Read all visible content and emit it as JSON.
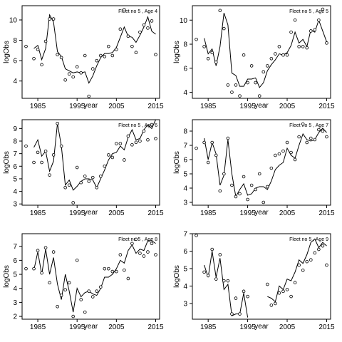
{
  "chart_data": [
    {
      "type": "scatter",
      "title": "Fleet no 5 , Age 4",
      "xlabel": "year",
      "ylabel": "logObs",
      "xlim": [
        1981,
        2016
      ],
      "ylim": [
        2.3,
        11.4
      ],
      "xticks": [
        1985,
        1995,
        2005,
        2015
      ],
      "yticks": [
        4,
        6,
        8,
        10
      ],
      "observed": {
        "x": [
          1982,
          1984,
          1985,
          1986,
          1987,
          1988,
          1989,
          1990,
          1991,
          1992,
          1993,
          1994,
          1995,
          1996,
          1997,
          1998,
          1999,
          2000,
          2001,
          2002,
          2003,
          2004,
          2005,
          2006,
          2007,
          2008,
          2009,
          2010,
          2011,
          2012,
          2013,
          2014,
          2015
        ],
        "y": [
          7.4,
          6.2,
          7.1,
          5.6,
          7.9,
          10.1,
          10.1,
          6.6,
          6.3,
          4.1,
          4.7,
          4.4,
          5.4,
          4.8,
          6.5,
          2.5,
          5.2,
          6.0,
          6.5,
          6.4,
          7.4,
          6.5,
          7.1,
          9.1,
          11.0,
          8.4,
          7.4,
          6.8,
          8.8,
          9.5,
          9.2,
          9.9,
          6.6
        ]
      },
      "fitted": {
        "x": [
          1982,
          1984,
          1985,
          1986,
          1987,
          1988,
          1989,
          1990,
          1991,
          1992,
          1993,
          1994,
          1995,
          1996,
          1997,
          1998,
          1999,
          2000,
          2001,
          2002,
          2003,
          2004,
          2005,
          2006,
          2007,
          2008,
          2009,
          2010,
          2011,
          2012,
          2013,
          2014,
          2015
        ],
        "y": [
          7.4,
          7.2,
          7.5,
          6.1,
          7.2,
          10.5,
          9.8,
          6.9,
          6.4,
          5.2,
          5.0,
          4.8,
          4.9,
          4.8,
          4.9,
          3.8,
          4.5,
          5.5,
          6.3,
          6.7,
          6.7,
          6.8,
          7.3,
          8.3,
          9.3,
          8.4,
          8.3,
          7.8,
          8.5,
          9.3,
          10.3,
          8.9,
          8.6
        ]
      }
    },
    {
      "type": "scatter",
      "title": "Fleet no 5 , Age 5",
      "xlabel": "year",
      "ylabel": "logObs",
      "xlim": [
        1981,
        2016
      ],
      "ylim": [
        3.5,
        11.2
      ],
      "xticks": [
        1985,
        1995,
        2005,
        2015
      ],
      "yticks": [
        4,
        6,
        8,
        10
      ],
      "observed": {
        "x": [
          1982,
          1984,
          1985,
          1986,
          1987,
          1988,
          1989,
          1990,
          1991,
          1992,
          1993,
          1994,
          1995,
          1996,
          1997,
          1998,
          1999,
          2000,
          2001,
          2002,
          2003,
          2004,
          2005,
          2006,
          2007,
          2008,
          2009,
          2010,
          2011,
          2012,
          2013,
          2014,
          2015
        ],
        "y": [
          8.4,
          7.8,
          6.8,
          7.3,
          6.5,
          10.8,
          9.3,
          4.6,
          4.0,
          4.6,
          3.7,
          7.1,
          4.8,
          6.2,
          4.8,
          3.7,
          5.7,
          6.2,
          6.8,
          7.2,
          7.8,
          7.1,
          7.1,
          9.0,
          10.0,
          7.8,
          7.8,
          7.7,
          9.1,
          9.2,
          10.0,
          10.9,
          8.1
        ]
      },
      "fitted": {
        "x": [
          1982,
          1984,
          1985,
          1986,
          1987,
          1988,
          1989,
          1990,
          1991,
          1992,
          1993,
          1994,
          1995,
          1996,
          1997,
          1998,
          1999,
          2000,
          2001,
          2002,
          2003,
          2004,
          2005,
          2006,
          2007,
          2008,
          2009,
          2010,
          2011,
          2012,
          2013,
          2014,
          2015
        ],
        "y": [
          8.9,
          8.5,
          7.2,
          7.6,
          6.2,
          7.8,
          10.6,
          9.6,
          5.6,
          5.4,
          4.5,
          4.5,
          5.1,
          5.1,
          5.2,
          4.4,
          4.8,
          5.8,
          6.3,
          6.7,
          7.2,
          7.1,
          7.3,
          7.9,
          9.0,
          8.1,
          8.4,
          7.8,
          9.2,
          9.0,
          10.0,
          9.1,
          8.2
        ]
      }
    },
    {
      "type": "scatter",
      "title": "Fleet no 5 , Age 6",
      "xlabel": "year",
      "ylabel": "logObs",
      "xlim": [
        1981,
        2016
      ],
      "ylim": [
        2.9,
        9.7
      ],
      "xticks": [
        1985,
        1995,
        2005,
        2015
      ],
      "yticks": [
        3,
        4,
        5,
        6,
        7,
        8,
        9
      ],
      "observed": {
        "x": [
          1982,
          1984,
          1985,
          1986,
          1987,
          1988,
          1989,
          1990,
          1991,
          1992,
          1993,
          1994,
          1995,
          1996,
          1997,
          1998,
          1999,
          2000,
          2001,
          2002,
          2003,
          2004,
          2005,
          2006,
          2007,
          2008,
          2009,
          2010,
          2011,
          2012,
          2013,
          2014,
          2015
        ],
        "y": [
          7.6,
          6.3,
          7.1,
          6.3,
          7.2,
          5.3,
          6.9,
          9.4,
          7.6,
          4.3,
          4.5,
          3.1,
          5.9,
          4.7,
          5.2,
          4.8,
          5.1,
          4.3,
          5.2,
          6.0,
          6.9,
          6.7,
          7.8,
          7.8,
          6.5,
          8.4,
          7.7,
          7.9,
          8.0,
          8.8,
          8.1,
          9.3,
          8.2
        ]
      },
      "fitted": {
        "x": [
          1982,
          1984,
          1985,
          1986,
          1987,
          1988,
          1989,
          1990,
          1991,
          1992,
          1993,
          1994,
          1995,
          1996,
          1997,
          1998,
          1999,
          2000,
          2001,
          2002,
          2003,
          2004,
          2005,
          2006,
          2007,
          2008,
          2009,
          2010,
          2011,
          2012,
          2013,
          2014,
          2015
        ],
        "y": [
          7.1,
          7.5,
          8.1,
          6.8,
          7.2,
          5.6,
          6.4,
          9.4,
          7.6,
          4.5,
          4.9,
          4.1,
          4.4,
          4.8,
          5.0,
          5.0,
          4.9,
          4.3,
          5.0,
          5.7,
          6.5,
          7.0,
          7.1,
          7.6,
          7.3,
          8.3,
          8.9,
          8.1,
          8.2,
          8.9,
          9.3,
          9.0,
          9.7
        ]
      }
    },
    {
      "type": "scatter",
      "title": "Fleet no 5 , Age 7",
      "xlabel": "year",
      "ylabel": "logObs",
      "xlim": [
        1981,
        2016
      ],
      "ylim": [
        2.8,
        8.8
      ],
      "xticks": [
        1985,
        1995,
        2005,
        2015
      ],
      "yticks": [
        3,
        4,
        5,
        6,
        7,
        8
      ],
      "observed": {
        "x": [
          1982,
          1984,
          1985,
          1986,
          1987,
          1988,
          1989,
          1990,
          1991,
          1992,
          1993,
          1994,
          1995,
          1996,
          1997,
          1998,
          1999,
          2000,
          2001,
          2002,
          2003,
          2004,
          2005,
          2006,
          2007,
          2008,
          2009,
          2010,
          2011,
          2012,
          2013,
          2014,
          2015
        ],
        "y": [
          6.8,
          7.2,
          5.8,
          7.2,
          6.3,
          3.8,
          5.0,
          7.5,
          4.2,
          3.4,
          3.6,
          4.8,
          3.2,
          4.2,
          3.9,
          5.0,
          3.0,
          4.1,
          5.4,
          6.3,
          6.4,
          6.6,
          7.2,
          6.5,
          6.0,
          7.6,
          8.5,
          7.2,
          7.5,
          7.4,
          8.1,
          8.0,
          7.6
        ]
      },
      "fitted": {
        "x": [
          1982,
          1984,
          1985,
          1986,
          1987,
          1988,
          1989,
          1990,
          1991,
          1992,
          1993,
          1994,
          1995,
          1996,
          1997,
          1998,
          1999,
          2000,
          2001,
          2002,
          2003,
          2004,
          2005,
          2006,
          2007,
          2008,
          2009,
          2010,
          2011,
          2012,
          2013,
          2014,
          2015
        ],
        "y": [
          7.1,
          7.5,
          6.0,
          7.2,
          6.4,
          4.2,
          4.9,
          7.4,
          5.0,
          3.4,
          3.9,
          4.3,
          3.5,
          3.6,
          4.0,
          4.1,
          4.1,
          3.9,
          4.5,
          5.3,
          5.6,
          5.8,
          6.8,
          6.3,
          6.1,
          7.0,
          7.8,
          7.4,
          7.3,
          7.4,
          7.9,
          8.2,
          7.9
        ]
      }
    },
    {
      "type": "scatter",
      "title": "Fleet no 5 , Age 8",
      "xlabel": "year",
      "ylabel": "logObs",
      "xlim": [
        1981,
        2016
      ],
      "ylim": [
        1.8,
        7.9
      ],
      "xticks": [
        1985,
        1995,
        2005,
        2015
      ],
      "yticks": [
        2,
        3,
        4,
        5,
        6,
        7
      ],
      "observed": {
        "x": [
          1982,
          1984,
          1985,
          1986,
          1987,
          1988,
          1989,
          1990,
          1991,
          1992,
          1993,
          1994,
          1995,
          1996,
          1997,
          1998,
          1999,
          2000,
          2001,
          2002,
          2003,
          2004,
          2005,
          2006,
          2007,
          2008,
          2009,
          2010,
          2011,
          2012,
          2013,
          2014,
          2015
        ],
        "y": [
          5.4,
          5.4,
          6.7,
          5.1,
          6.9,
          4.4,
          6.6,
          2.7,
          3.5,
          3.9,
          4.4,
          2.0,
          6.0,
          3.2,
          2.3,
          3.8,
          3.4,
          3.8,
          4.1,
          5.4,
          5.4,
          5.2,
          5.2,
          6.4,
          5.3,
          4.7,
          7.2,
          7.5,
          6.5,
          6.3,
          6.6,
          7.2,
          6.4
        ]
      },
      "fitted": {
        "x": [
          1982,
          1984,
          1985,
          1986,
          1987,
          1988,
          1989,
          1990,
          1991,
          1992,
          1993,
          1994,
          1995,
          1996,
          1997,
          1998,
          1999,
          2000,
          2001,
          2002,
          2003,
          2004,
          2005,
          2006,
          2007,
          2008,
          2009,
          2010,
          2011,
          2012,
          2013,
          2014,
          2015
        ],
        "y": [
          5.6,
          5.3,
          6.6,
          5.0,
          6.8,
          5.0,
          6.2,
          4.3,
          3.2,
          5.0,
          3.8,
          2.3,
          4.0,
          3.4,
          3.7,
          3.8,
          3.6,
          3.5,
          4.0,
          4.8,
          4.8,
          5.0,
          5.4,
          6.0,
          5.8,
          6.7,
          7.1,
          6.5,
          6.8,
          6.7,
          7.4,
          7.4,
          7.2
        ]
      }
    },
    {
      "type": "scatter",
      "title": "Fleet no 5 , Age 9",
      "xlabel": "year",
      "ylabel": "logObs",
      "xlim": [
        1981,
        2016
      ],
      "ylim": [
        2.1,
        7.0
      ],
      "xticks": [
        1985,
        1995,
        2005,
        2015
      ],
      "yticks": [
        3,
        4,
        5,
        6,
        7
      ],
      "observed": {
        "x": [
          1982,
          1984,
          1985,
          1986,
          1987,
          1988,
          1989,
          1990,
          1991,
          1992,
          1993,
          1994,
          1995,
          2000,
          2001,
          2002,
          2003,
          2004,
          2005,
          2006,
          2007,
          2008,
          2009,
          2010,
          2011,
          2012,
          2013,
          2014,
          2015
        ],
        "y": [
          6.9,
          4.8,
          4.6,
          6.1,
          4.4,
          5.8,
          4.3,
          4.3,
          2.4,
          3.3,
          2.4,
          3.7,
          3.4,
          4.1,
          2.9,
          3.0,
          3.6,
          3.7,
          3.8,
          3.4,
          4.2,
          5.2,
          4.9,
          5.4,
          5.5,
          5.9,
          6.1,
          6.3,
          5.2
        ]
      },
      "fitted": {
        "x": [
          1982,
          1984,
          1985,
          1986,
          1987,
          1988,
          1989,
          1990,
          1991,
          1992,
          1993,
          1994,
          1995,
          2000,
          2001,
          2002,
          2003,
          2004,
          2005,
          2006,
          2007,
          2008,
          2009,
          2010,
          2011,
          2012,
          2013,
          2014,
          2015
        ],
        "y": [
          6.9,
          5.2,
          4.5,
          6.0,
          4.5,
          5.6,
          3.8,
          4.1,
          2.3,
          2.4,
          2.4,
          3.6,
          2.2,
          3.4,
          3.3,
          3.1,
          4.0,
          3.8,
          4.4,
          4.3,
          4.8,
          5.5,
          5.3,
          5.8,
          6.5,
          6.7,
          6.2,
          6.5,
          6.3
        ]
      }
    }
  ]
}
